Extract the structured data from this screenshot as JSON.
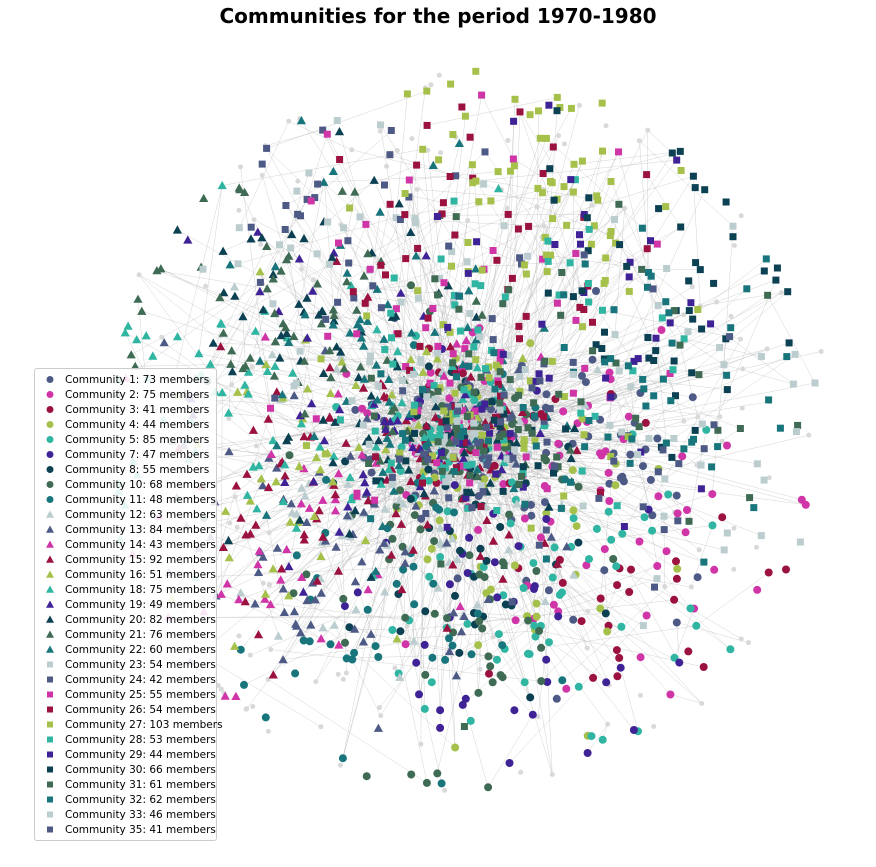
{
  "chart_data": {
    "type": "scatter",
    "subtype": "network graph",
    "title": "Communities for the period 1970-1980",
    "edge_color": "#b0b0b0",
    "unassigned_node_color": "#d9d9d9",
    "legend_placement": "left",
    "communities": [
      {
        "id": 1,
        "label": "Community 1: 73 members",
        "members": 73,
        "marker": "circle",
        "color": "#4e5a86"
      },
      {
        "id": 2,
        "label": "Community 2: 75 members",
        "members": 75,
        "marker": "circle",
        "color": "#d035a8"
      },
      {
        "id": 3,
        "label": "Community 3: 41 members",
        "members": 41,
        "marker": "circle",
        "color": "#9b1240"
      },
      {
        "id": 4,
        "label": "Community 4: 44 members",
        "members": 44,
        "marker": "circle",
        "color": "#a6c14b"
      },
      {
        "id": 5,
        "label": "Community 5: 85 members",
        "members": 85,
        "marker": "circle",
        "color": "#2fb5a1"
      },
      {
        "id": 7,
        "label": "Community 7: 47 members",
        "members": 47,
        "marker": "circle",
        "color": "#3f2396"
      },
      {
        "id": 8,
        "label": "Community 8: 55 members",
        "members": 55,
        "marker": "circle",
        "color": "#0b4152"
      },
      {
        "id": 10,
        "label": "Community 10: 68 members",
        "members": 68,
        "marker": "circle",
        "color": "#3f6b54"
      },
      {
        "id": 11,
        "label": "Community 11: 48 members",
        "members": 48,
        "marker": "circle",
        "color": "#18757c"
      },
      {
        "id": 12,
        "label": "Community 12: 63 members",
        "members": 63,
        "marker": "triangle",
        "color": "#bccdd0"
      },
      {
        "id": 13,
        "label": "Community 13: 84 members",
        "members": 84,
        "marker": "triangle",
        "color": "#4e5a86"
      },
      {
        "id": 14,
        "label": "Community 14: 43 members",
        "members": 43,
        "marker": "triangle",
        "color": "#d035a8"
      },
      {
        "id": 15,
        "label": "Community 15: 92 members",
        "members": 92,
        "marker": "triangle",
        "color": "#9b1240"
      },
      {
        "id": 16,
        "label": "Community 16: 51 members",
        "members": 51,
        "marker": "triangle",
        "color": "#a6c14b"
      },
      {
        "id": 18,
        "label": "Community 18: 75 members",
        "members": 75,
        "marker": "triangle",
        "color": "#2fb5a1"
      },
      {
        "id": 19,
        "label": "Community 19: 49 members",
        "members": 49,
        "marker": "triangle",
        "color": "#3f2396"
      },
      {
        "id": 20,
        "label": "Community 20: 82 members",
        "members": 82,
        "marker": "triangle",
        "color": "#0b4152"
      },
      {
        "id": 21,
        "label": "Community 21: 76 members",
        "members": 76,
        "marker": "triangle",
        "color": "#3f6b54"
      },
      {
        "id": 22,
        "label": "Community 22: 60 members",
        "members": 60,
        "marker": "triangle",
        "color": "#18757c"
      },
      {
        "id": 23,
        "label": "Community 23: 54 members",
        "members": 54,
        "marker": "square",
        "color": "#bccdd0"
      },
      {
        "id": 24,
        "label": "Community 24: 42 members",
        "members": 42,
        "marker": "square",
        "color": "#4e5a86"
      },
      {
        "id": 25,
        "label": "Community 25: 55 members",
        "members": 55,
        "marker": "square",
        "color": "#d035a8"
      },
      {
        "id": 26,
        "label": "Community 26: 54 members",
        "members": 54,
        "marker": "square",
        "color": "#9b1240"
      },
      {
        "id": 27,
        "label": "Community 27: 103 members",
        "members": 103,
        "marker": "square",
        "color": "#a6c14b"
      },
      {
        "id": 28,
        "label": "Community 28: 53 members",
        "members": 53,
        "marker": "square",
        "color": "#2fb5a1"
      },
      {
        "id": 29,
        "label": "Community 29: 44 members",
        "members": 44,
        "marker": "square",
        "color": "#3f2396"
      },
      {
        "id": 30,
        "label": "Community 30: 66 members",
        "members": 66,
        "marker": "square",
        "color": "#0b4152"
      },
      {
        "id": 31,
        "label": "Community 31: 61 members",
        "members": 61,
        "marker": "square",
        "color": "#3f6b54"
      },
      {
        "id": 32,
        "label": "Community 32: 62 members",
        "members": 62,
        "marker": "square",
        "color": "#18757c"
      },
      {
        "id": 33,
        "label": "Community 33: 46 members",
        "members": 46,
        "marker": "square",
        "color": "#bccdd0"
      },
      {
        "id": 35,
        "label": "Community 35: 41 members",
        "members": 41,
        "marker": "square",
        "color": "#4e5a86"
      }
    ]
  }
}
